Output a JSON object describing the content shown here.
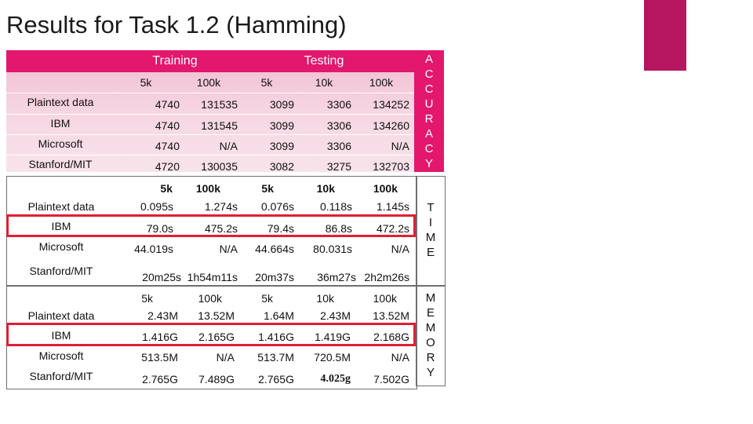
{
  "title": "Results for Task 1.2 (Hamming)",
  "accuracy": {
    "group_training": "Training",
    "group_testing": "Testing",
    "side_label": [
      "A",
      "C",
      "C",
      "U",
      "R",
      "A",
      "C",
      "Y"
    ],
    "columns": [
      "5k",
      "100k",
      "5k",
      "10k",
      "100k"
    ],
    "rows": [
      {
        "label": "Plaintext data",
        "values": [
          "4740",
          "131535",
          "3099",
          "3306",
          "134252"
        ]
      },
      {
        "label": "IBM",
        "values": [
          "4740",
          "131545",
          "3099",
          "3306",
          "134260"
        ]
      },
      {
        "label": "Microsoft",
        "values": [
          "4740",
          "N/A",
          "3099",
          "3306",
          "N/A"
        ]
      },
      {
        "label": "Stanford/MIT",
        "values": [
          "4720",
          "130035",
          "3082",
          "3275",
          "132703"
        ]
      }
    ]
  },
  "time": {
    "side_label": [
      "T",
      "I",
      "M",
      "E"
    ],
    "columns": [
      "5k",
      "100k",
      "5k",
      "10k",
      "100k"
    ],
    "rows": [
      {
        "label": "Plaintext data",
        "values": [
          "0.095s",
          "1.274s",
          "0.076s",
          "0.118s",
          "1.145s"
        ]
      },
      {
        "label": "IBM",
        "values": [
          "79.0s",
          "475.2s",
          "79.4s",
          "86.8s",
          "472.2s"
        ]
      },
      {
        "label": "Microsoft",
        "values": [
          "44.019s",
          "N/A",
          "44.664s",
          "80.031s",
          "N/A"
        ]
      },
      {
        "label": "Stanford/MIT",
        "values": [
          "20m25s",
          "1h54m11s",
          "20m37s",
          "36m27s",
          "2h2m26s"
        ]
      }
    ]
  },
  "memory": {
    "side_label": [
      "M",
      "E",
      "M",
      "O",
      "R",
      "Y"
    ],
    "columns": [
      "5k",
      "100k",
      "5k",
      "10k",
      "100k"
    ],
    "rows": [
      {
        "label": "Plaintext data",
        "values": [
          "2.43M",
          "13.52M",
          "1.64M",
          "2.43M",
          "13.52M"
        ]
      },
      {
        "label": "IBM",
        "values": [
          "1.416G",
          "2.165G",
          "1.416G",
          "1.419G",
          "2.168G"
        ]
      },
      {
        "label": "Microsoft",
        "values": [
          "513.5M",
          "N/A",
          "513.7M",
          "720.5M",
          "N/A"
        ]
      },
      {
        "label": "Stanford/MIT",
        "values": [
          "2.765G",
          "7.489G",
          "2.765G",
          "4.025g",
          "7.502G"
        ]
      }
    ]
  },
  "colors": {
    "accent": "#e2176d",
    "deco": "#b5165f",
    "highlight": "#e01e35"
  }
}
